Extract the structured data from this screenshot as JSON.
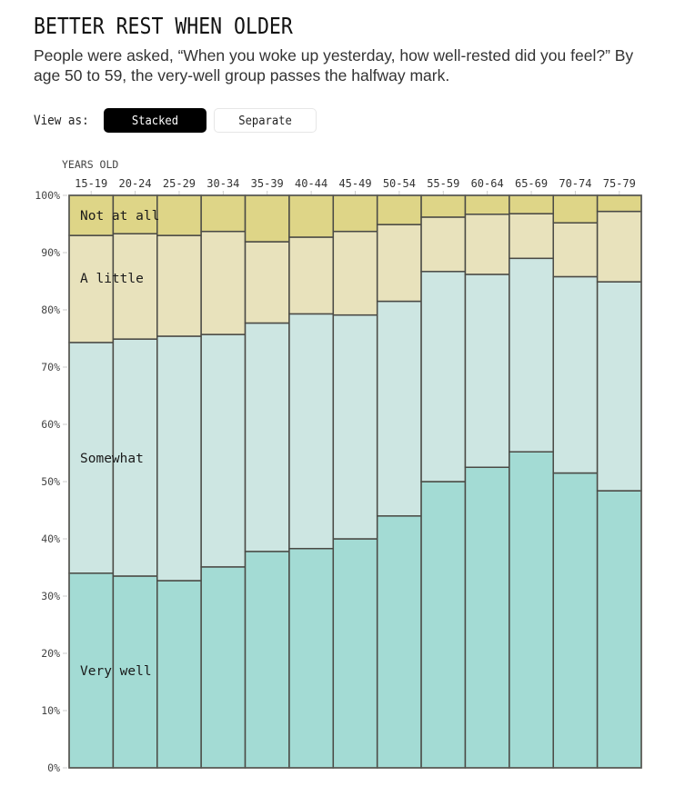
{
  "header": {
    "title": "BETTER REST WHEN OLDER",
    "subtitle": "People were asked, “When you woke up yesterday, how well-rested did you feel?” By age 50 to 59, the very-well group passes the halfway mark."
  },
  "view_toggle": {
    "label": "View as:",
    "options": [
      {
        "label": "Stacked",
        "selected": true
      },
      {
        "label": "Separate",
        "selected": false
      }
    ]
  },
  "chart_data": {
    "type": "bar",
    "stacked": true,
    "title": "BETTER REST WHEN OLDER",
    "xlabel": "YEARS OLD",
    "ylabel": "",
    "ylim": [
      0,
      100
    ],
    "y_ticks": [
      "0%",
      "10%",
      "20%",
      "30%",
      "40%",
      "50%",
      "60%",
      "70%",
      "80%",
      "90%",
      "100%"
    ],
    "categories": [
      "15-19",
      "20-24",
      "25-29",
      "30-34",
      "35-39",
      "40-44",
      "45-49",
      "50-54",
      "55-59",
      "60-64",
      "65-69",
      "70-74",
      "75-79"
    ],
    "series": [
      {
        "name": "Very well",
        "color": "#a3dbd4",
        "values": [
          34.0,
          33.5,
          32.7,
          35.1,
          37.8,
          38.3,
          40.0,
          44.0,
          50.0,
          52.5,
          55.2,
          51.5,
          48.4
        ]
      },
      {
        "name": "Somewhat",
        "color": "#cde6e2",
        "values": [
          40.3,
          41.4,
          42.7,
          40.6,
          39.9,
          41.0,
          39.1,
          37.5,
          36.7,
          33.7,
          33.8,
          34.3,
          36.5
        ]
      },
      {
        "name": "A little",
        "color": "#e8e2bc",
        "values": [
          18.7,
          18.4,
          17.6,
          18.0,
          14.2,
          13.4,
          14.6,
          13.4,
          9.5,
          10.5,
          7.8,
          9.4,
          12.3
        ]
      },
      {
        "name": "Not at all",
        "color": "#ded587",
        "values": [
          7.0,
          6.7,
          7.0,
          6.3,
          8.1,
          7.3,
          6.3,
          5.1,
          3.8,
          3.3,
          3.2,
          4.8,
          2.8
        ]
      }
    ],
    "series_labels_in_first_column": true,
    "grid": false,
    "legend": "inline-labels"
  }
}
